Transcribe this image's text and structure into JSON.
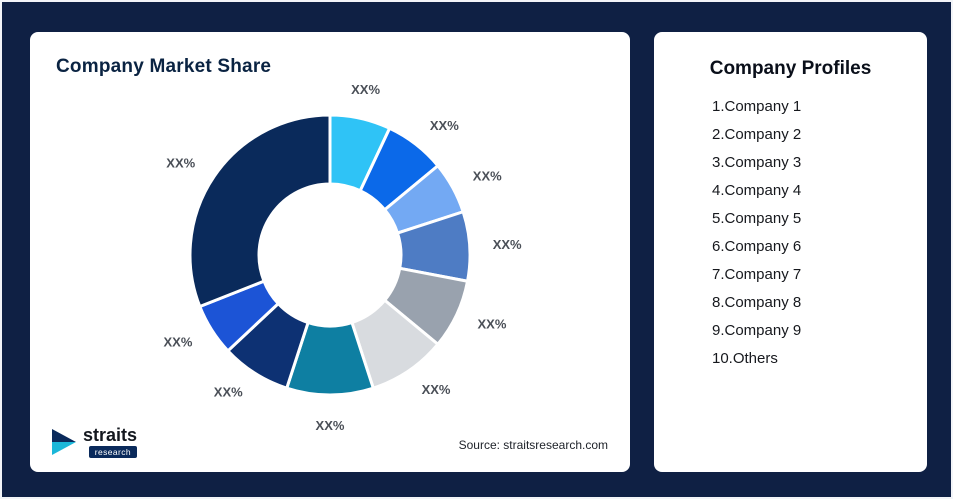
{
  "page": {
    "background": "#0F2044",
    "frame_border": "#F2F4F8"
  },
  "chart_card": {
    "title": "Company Market Share",
    "source": "Source: straitsresearch.com"
  },
  "chart_data": {
    "type": "pie",
    "donut": true,
    "title": "Company Market Share",
    "legend": "none",
    "labels_position": "outside",
    "start_angle_deg": 0,
    "direction": "clockwise",
    "segments": [
      {
        "name": "segment-1",
        "label": "XX%",
        "approx_value_pct": 7,
        "color": "#2FC3F6"
      },
      {
        "name": "segment-2",
        "label": "XX%",
        "approx_value_pct": 7,
        "color": "#0B69E9"
      },
      {
        "name": "segment-3",
        "label": "XX%",
        "approx_value_pct": 6,
        "color": "#73A9F3"
      },
      {
        "name": "segment-4",
        "label": "XX%",
        "approx_value_pct": 8,
        "color": "#4E7CC4"
      },
      {
        "name": "segment-5",
        "label": "XX%",
        "approx_value_pct": 8,
        "color": "#99A2AE"
      },
      {
        "name": "segment-6",
        "label": "XX%",
        "approx_value_pct": 9,
        "color": "#D8DBDF"
      },
      {
        "name": "segment-7",
        "label": "XX%",
        "approx_value_pct": 10,
        "color": "#0E7FA2"
      },
      {
        "name": "segment-8",
        "label": "XX%",
        "approx_value_pct": 8,
        "color": "#0D3173"
      },
      {
        "name": "segment-9",
        "label": "XX%",
        "approx_value_pct": 6,
        "color": "#1C54D6"
      },
      {
        "name": "segment-10",
        "label": "XX%",
        "approx_value_pct": 31,
        "color": "#0A2A5B"
      }
    ]
  },
  "logo": {
    "name": "straits",
    "sub": "research"
  },
  "profiles": {
    "title": "Company Profiles",
    "items": [
      "1.Company 1",
      "2.Company 2",
      "3.Company 3",
      "4.Company 4",
      "5.Company 5",
      "6.Company 6",
      "7.Company 7",
      "8.Company 8",
      "9.Company 9",
      "10.Others"
    ]
  }
}
